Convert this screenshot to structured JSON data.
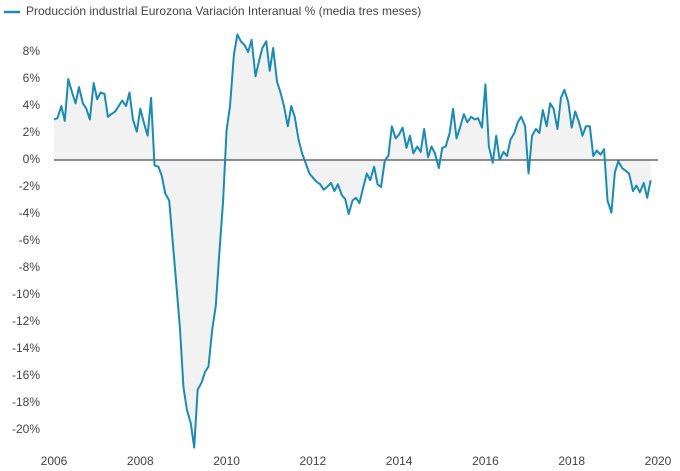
{
  "chart_data": {
    "type": "line",
    "series": [
      {
        "name": "Producción industrial Eurozona Variación Interanual % (media tres meses)",
        "color": "#1b8bb4",
        "x": [
          2006.0,
          2006.08,
          2006.17,
          2006.25,
          2006.33,
          2006.42,
          2006.5,
          2006.58,
          2006.67,
          2006.75,
          2006.83,
          2006.92,
          2007.0,
          2007.08,
          2007.17,
          2007.25,
          2007.33,
          2007.42,
          2007.5,
          2007.58,
          2007.67,
          2007.75,
          2007.83,
          2007.92,
          2008.0,
          2008.08,
          2008.17,
          2008.25,
          2008.33,
          2008.42,
          2008.5,
          2008.58,
          2008.67,
          2008.75,
          2008.83,
          2008.92,
          2009.0,
          2009.08,
          2009.17,
          2009.25,
          2009.33,
          2009.42,
          2009.5,
          2009.58,
          2009.67,
          2009.75,
          2009.83,
          2009.92,
          2010.0,
          2010.08,
          2010.17,
          2010.25,
          2010.33,
          2010.42,
          2010.5,
          2010.58,
          2010.67,
          2010.75,
          2010.83,
          2010.92,
          2011.0,
          2011.08,
          2011.17,
          2011.25,
          2011.33,
          2011.42,
          2011.5,
          2011.58,
          2011.67,
          2011.75,
          2011.83,
          2011.92,
          2012.0,
          2012.08,
          2012.17,
          2012.25,
          2012.33,
          2012.42,
          2012.5,
          2012.58,
          2012.67,
          2012.75,
          2012.83,
          2012.92,
          2013.0,
          2013.08,
          2013.17,
          2013.25,
          2013.33,
          2013.42,
          2013.5,
          2013.58,
          2013.67,
          2013.75,
          2013.83,
          2013.92,
          2014.0,
          2014.08,
          2014.17,
          2014.25,
          2014.33,
          2014.42,
          2014.5,
          2014.58,
          2014.67,
          2014.75,
          2014.83,
          2014.92,
          2015.0,
          2015.08,
          2015.17,
          2015.25,
          2015.33,
          2015.42,
          2015.5,
          2015.58,
          2015.67,
          2015.75,
          2015.83,
          2015.92,
          2016.0,
          2016.08,
          2016.17,
          2016.25,
          2016.33,
          2016.42,
          2016.5,
          2016.58,
          2016.67,
          2016.75,
          2016.83,
          2016.92,
          2017.0,
          2017.08,
          2017.17,
          2017.25,
          2017.33,
          2017.42,
          2017.5,
          2017.58,
          2017.67,
          2017.75,
          2017.83,
          2017.92,
          2018.0,
          2018.08,
          2018.17,
          2018.25,
          2018.33,
          2018.42,
          2018.5,
          2018.58,
          2018.67,
          2018.75,
          2018.83,
          2018.92,
          2019.0,
          2019.08,
          2019.17,
          2019.25,
          2019.33,
          2019.42,
          2019.5,
          2019.58,
          2019.67,
          2019.75,
          2019.83
        ],
        "values": [
          3.0,
          3.1,
          4.0,
          2.9,
          6.0,
          5.0,
          4.2,
          5.4,
          4.2,
          3.8,
          3.0,
          5.7,
          4.5,
          5.0,
          4.9,
          3.2,
          3.4,
          3.6,
          4.0,
          4.4,
          4.0,
          5.0,
          3.0,
          2.1,
          3.8,
          2.8,
          1.8,
          4.6,
          -0.4,
          -0.5,
          -1.2,
          -2.5,
          -3.0,
          -6.0,
          -9.0,
          -12.5,
          -16.8,
          -18.5,
          -19.5,
          -21.3,
          -17.0,
          -16.5,
          -15.7,
          -15.3,
          -12.5,
          -10.8,
          -7.0,
          -3.0,
          2.2,
          4.0,
          7.8,
          9.3,
          8.8,
          8.5,
          8.0,
          8.9,
          6.2,
          7.3,
          8.3,
          8.8,
          6.6,
          8.3,
          5.8,
          5.0,
          4.0,
          2.5,
          4.0,
          3.2,
          1.5,
          0.5,
          -0.2,
          -1.0,
          -1.3,
          -1.6,
          -1.8,
          -2.2,
          -2.0,
          -1.7,
          -2.3,
          -1.8,
          -2.6,
          -2.9,
          -4.0,
          -3.0,
          -2.8,
          -3.2,
          -2.0,
          -1.0,
          -1.5,
          -0.5,
          -1.8,
          -2.0,
          0.0,
          0.3,
          2.5,
          1.6,
          1.9,
          2.4,
          0.9,
          1.8,
          0.5,
          1.0,
          0.6,
          2.3,
          0.2,
          1.0,
          0.5,
          -0.6,
          0.9,
          1.0,
          2.0,
          3.8,
          1.6,
          2.5,
          3.4,
          2.8,
          3.2,
          3.0,
          3.1,
          2.4,
          5.6,
          1.0,
          -0.2,
          1.8,
          0.0,
          0.6,
          0.3,
          1.5,
          2.0,
          2.8,
          3.2,
          2.5,
          -1.0,
          1.8,
          2.3,
          2.0,
          3.7,
          2.5,
          4.2,
          3.8,
          2.3,
          4.6,
          5.2,
          4.3,
          2.4,
          3.6,
          2.8,
          1.8,
          2.5,
          2.5,
          0.3,
          0.7,
          0.4,
          0.8,
          -3.0,
          -3.9,
          -0.9,
          -0.1,
          -0.6,
          -0.8,
          -1.0,
          -2.3,
          -1.9,
          -2.4,
          -1.7,
          -2.8,
          -1.5
        ]
      }
    ],
    "xlim": [
      2006,
      2020
    ],
    "xticks": [
      2006,
      2008,
      2010,
      2012,
      2014,
      2016,
      2018,
      2020
    ],
    "ylim": [
      -22,
      10
    ],
    "yticks": [
      {
        "value": 8,
        "label": "8%"
      },
      {
        "value": 6,
        "label": "6%"
      },
      {
        "value": 4,
        "label": "4%"
      },
      {
        "value": 2,
        "label": "2%"
      },
      {
        "value": 0,
        "label": "0%"
      },
      {
        "value": -2,
        "label": "-2%"
      },
      {
        "value": -4,
        "label": "-4%"
      },
      {
        "value": -6,
        "label": "-6%"
      },
      {
        "value": -8,
        "label": "-8%"
      },
      {
        "value": -10,
        "label": "-10%"
      },
      {
        "value": -12,
        "label": "-12%"
      },
      {
        "value": -14,
        "label": "-14%"
      },
      {
        "value": -16,
        "label": "-16%"
      },
      {
        "value": -18,
        "label": "-18%"
      },
      {
        "value": -20,
        "label": "-20%"
      }
    ],
    "area_fill": "#f2f2f2",
    "legend": "top-left"
  }
}
